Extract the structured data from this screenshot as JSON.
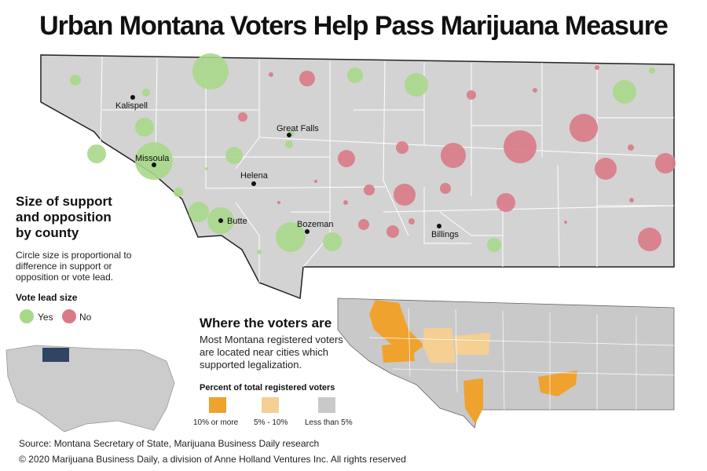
{
  "title": "Urban Montana Voters Help Pass Marijuana Measure",
  "colors": {
    "yes": "#a8d88a",
    "no": "#d97a86",
    "land": "#d3d3d3",
    "county_line": "#ffffff",
    "border": "#222222",
    "usa_highlight": "#2f4563",
    "tier_high": "#f0a22e",
    "tier_mid": "#f6cf93",
    "tier_low": "#c9c9c9"
  },
  "cities": [
    "Kalispell",
    "Great Falls",
    "Missoula",
    "Helena",
    "Butte",
    "Bozeman",
    "Billings"
  ],
  "legend": {
    "heading": "Size of support and opposition by county",
    "note": "Circle size is proportional to difference in support or opposition or vote lead.",
    "vote_lead_heading": "Vote lead size",
    "yes_label": "Yes",
    "no_label": "No"
  },
  "voters": {
    "heading": "Where the voters are",
    "body": "Most Montana registered voters are located near cities which supported legalization.",
    "percent_heading": "Percent of total registered voters",
    "tiers": [
      "10% or more",
      "5% - 10%",
      "Less than 5%"
    ]
  },
  "footer": {
    "source": "Source: Montana Secretary of State, Marijuana Business Daily research",
    "copyright": "© 2020 Marijuana Business Daily, a division of Anne Holland Ventures Inc. All rights reserved"
  }
}
